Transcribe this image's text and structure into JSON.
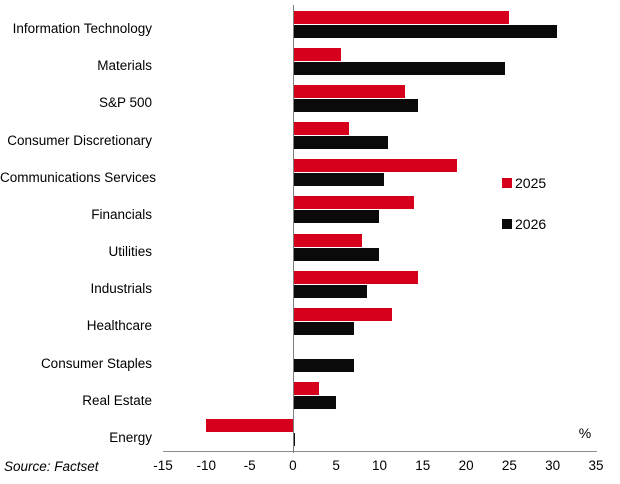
{
  "chart_data": {
    "type": "bar",
    "orientation": "horizontal",
    "title": "",
    "categories": [
      "Information Technology",
      "Materials",
      "S&P 500",
      "Consumer Discretionary",
      "Communications Services",
      "Financials",
      "Utilities",
      "Industrials",
      "Healthcare",
      "Consumer Staples",
      "Real Estate",
      "Energy"
    ],
    "series": [
      {
        "name": "2025",
        "color": "#d6001c",
        "values": [
          25,
          5.5,
          13,
          6.5,
          19,
          14,
          8,
          14.5,
          11.5,
          0,
          3,
          -10
        ]
      },
      {
        "name": "2026",
        "color": "#0a0a0a",
        "values": [
          30.5,
          24.5,
          14.5,
          11,
          10.5,
          10,
          10,
          8.5,
          7,
          7,
          5,
          0.3
        ]
      }
    ],
    "xlabel": "%",
    "xlim": [
      -15,
      35
    ],
    "xticks": [
      -15,
      -10,
      -5,
      0,
      5,
      10,
      15,
      20,
      25,
      30,
      35
    ],
    "grid": false,
    "legend_position": "right-middle"
  },
  "legend": {
    "items": [
      {
        "label": "2025",
        "color": "#d6001c"
      },
      {
        "label": "2026",
        "color": "#0a0a0a"
      }
    ]
  },
  "footer": {
    "source_note": "Source: Factset"
  }
}
